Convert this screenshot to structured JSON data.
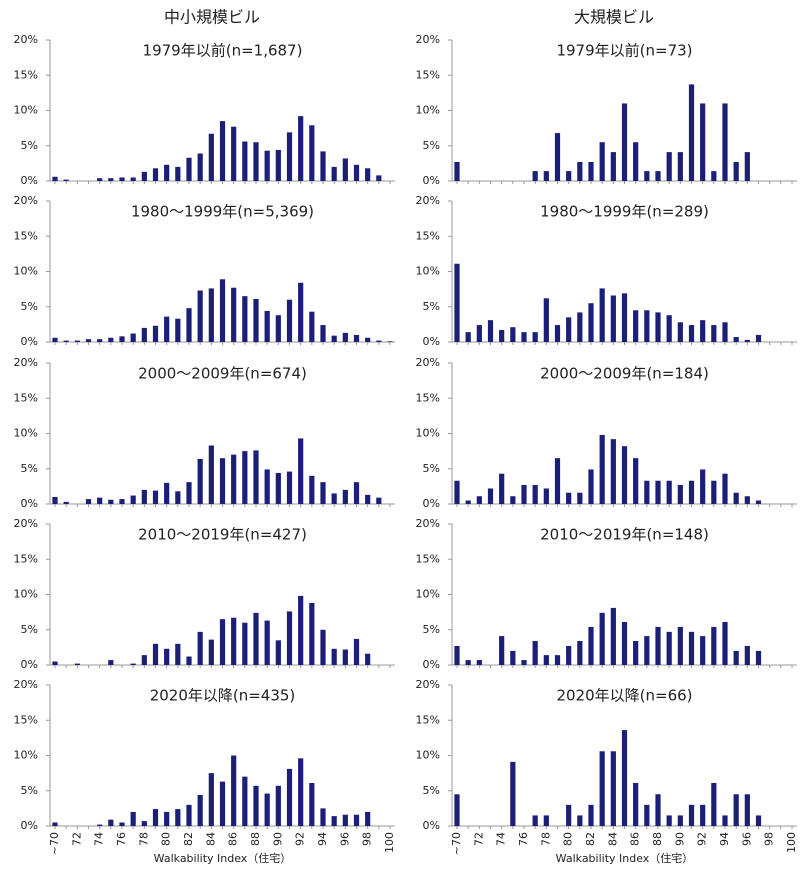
{
  "column_titles": [
    "中小規模ビル",
    "大規模ビル"
  ],
  "chart_data": [
    {
      "type": "bar",
      "title": "1979年以前(n=1,687)",
      "color": "#1c1f78",
      "ylim": [
        0,
        20
      ],
      "yticks": [
        {
          "value": 0,
          "label": "0%"
        },
        {
          "value": 5,
          "label": "5%"
        },
        {
          "value": 10,
          "label": "10%"
        },
        {
          "value": 15,
          "label": "15%"
        },
        {
          "value": 20,
          "label": "20%"
        }
      ],
      "values": [
        0.6,
        0.2,
        0,
        0,
        0.4,
        0.4,
        0.5,
        0.5,
        1.3,
        1.8,
        2.3,
        2.0,
        3.3,
        3.9,
        6.7,
        8.5,
        7.7,
        5.6,
        5.5,
        4.3,
        4.4,
        6.9,
        9.2,
        7.9,
        4.2,
        2.0,
        3.2,
        2.3,
        1.8,
        0.8,
        0
      ]
    },
    {
      "type": "bar",
      "title": "1979年以前(n=73)",
      "color": "#1c1f78",
      "ylim": [
        0,
        20
      ],
      "yticks": [
        {
          "value": 0,
          "label": "0%"
        },
        {
          "value": 5,
          "label": "5%"
        },
        {
          "value": 10,
          "label": "10%"
        },
        {
          "value": 15,
          "label": "15%"
        },
        {
          "value": 20,
          "label": "20%"
        }
      ],
      "values": [
        2.7,
        0,
        0,
        0,
        0,
        0,
        0,
        1.4,
        1.4,
        6.8,
        1.4,
        2.7,
        2.7,
        5.5,
        4.1,
        11.0,
        5.5,
        1.4,
        1.4,
        4.1,
        4.1,
        13.7,
        11.0,
        1.4,
        11.0,
        2.7,
        4.1,
        0,
        0,
        0,
        0
      ]
    },
    {
      "type": "bar",
      "title": "1980～1999年(n=5,369)",
      "color": "#1c1f78",
      "ylim": [
        0,
        20
      ],
      "yticks": [
        {
          "value": 0,
          "label": "0%"
        },
        {
          "value": 5,
          "label": "5%"
        },
        {
          "value": 10,
          "label": "10%"
        },
        {
          "value": 15,
          "label": "15%"
        },
        {
          "value": 20,
          "label": "20%"
        }
      ],
      "values": [
        0.6,
        0.2,
        0.2,
        0.4,
        0.4,
        0.6,
        0.8,
        1.2,
        2.0,
        2.3,
        3.6,
        3.3,
        4.8,
        7.3,
        7.6,
        8.9,
        7.7,
        6.5,
        6.1,
        4.4,
        3.8,
        6.0,
        8.4,
        4.3,
        2.4,
        0.9,
        1.3,
        1.0,
        0.6,
        0.2,
        0.1
      ]
    },
    {
      "type": "bar",
      "title": "1980～1999年(n=289)",
      "color": "#1c1f78",
      "ylim": [
        0,
        20
      ],
      "yticks": [
        {
          "value": 0,
          "label": "0%"
        },
        {
          "value": 5,
          "label": "5%"
        },
        {
          "value": 10,
          "label": "10%"
        },
        {
          "value": 15,
          "label": "15%"
        },
        {
          "value": 20,
          "label": "20%"
        }
      ],
      "values": [
        11.1,
        1.4,
        2.4,
        3.1,
        1.7,
        2.1,
        1.4,
        1.4,
        6.2,
        2.4,
        3.5,
        4.2,
        5.5,
        7.6,
        6.6,
        6.9,
        4.5,
        4.5,
        4.2,
        3.8,
        2.8,
        2.4,
        3.1,
        2.4,
        2.8,
        0.7,
        0.3,
        1.0,
        0,
        0,
        0
      ]
    },
    {
      "type": "bar",
      "title": "2000～2009年(n=674)",
      "color": "#1c1f78",
      "ylim": [
        0,
        20
      ],
      "yticks": [
        {
          "value": 0,
          "label": "0%"
        },
        {
          "value": 5,
          "label": "5%"
        },
        {
          "value": 10,
          "label": "10%"
        },
        {
          "value": 15,
          "label": "15%"
        },
        {
          "value": 20,
          "label": "20%"
        }
      ],
      "values": [
        1.0,
        0.3,
        0,
        0.7,
        0.9,
        0.6,
        0.7,
        1.2,
        2.0,
        1.9,
        3.0,
        1.8,
        3.1,
        6.4,
        8.3,
        6.5,
        7.0,
        7.5,
        7.6,
        4.9,
        4.4,
        4.6,
        9.3,
        4.0,
        3.1,
        1.5,
        2.0,
        3.1,
        1.3,
        0.9,
        0
      ]
    },
    {
      "type": "bar",
      "title": "2000～2009年(n=184)",
      "color": "#1c1f78",
      "ylim": [
        0,
        20
      ],
      "yticks": [
        {
          "value": 0,
          "label": "0%"
        },
        {
          "value": 5,
          "label": "5%"
        },
        {
          "value": 10,
          "label": "10%"
        },
        {
          "value": 15,
          "label": "15%"
        },
        {
          "value": 20,
          "label": "20%"
        }
      ],
      "values": [
        3.3,
        0.5,
        1.1,
        2.2,
        4.3,
        1.1,
        2.7,
        2.7,
        2.2,
        6.5,
        1.6,
        1.6,
        4.9,
        9.8,
        9.2,
        8.2,
        6.5,
        3.3,
        3.3,
        3.3,
        2.7,
        3.3,
        4.9,
        3.3,
        4.3,
        1.6,
        1.1,
        0.5,
        0,
        0,
        0
      ]
    },
    {
      "type": "bar",
      "title": "2010～2019年(n=427)",
      "color": "#1c1f78",
      "ylim": [
        0,
        20
      ],
      "yticks": [
        {
          "value": 0,
          "label": "0%"
        },
        {
          "value": 5,
          "label": "5%"
        },
        {
          "value": 10,
          "label": "10%"
        },
        {
          "value": 15,
          "label": "15%"
        },
        {
          "value": 20,
          "label": "20%"
        }
      ],
      "values": [
        0.5,
        0,
        0.2,
        0,
        0,
        0.7,
        0,
        0.2,
        1.4,
        3.0,
        2.3,
        3.0,
        1.2,
        4.7,
        3.6,
        6.5,
        6.7,
        6.0,
        7.4,
        6.3,
        3.5,
        7.6,
        9.8,
        8.8,
        5.0,
        2.3,
        2.2,
        3.7,
        1.6,
        0,
        0
      ]
    },
    {
      "type": "bar",
      "title": "2010～2019年(n=148)",
      "color": "#1c1f78",
      "ylim": [
        0,
        20
      ],
      "yticks": [
        {
          "value": 0,
          "label": "0%"
        },
        {
          "value": 5,
          "label": "5%"
        },
        {
          "value": 10,
          "label": "10%"
        },
        {
          "value": 15,
          "label": "15%"
        },
        {
          "value": 20,
          "label": "20%"
        }
      ],
      "values": [
        2.7,
        0.7,
        0.7,
        0,
        4.1,
        2.0,
        0.7,
        3.4,
        1.4,
        1.4,
        2.7,
        3.4,
        5.4,
        7.4,
        8.1,
        6.1,
        3.4,
        4.1,
        5.4,
        4.7,
        5.4,
        4.7,
        4.1,
        5.4,
        6.1,
        2.0,
        2.7,
        2.0,
        0,
        0,
        0
      ]
    },
    {
      "type": "bar",
      "title": "2020年以降(n=435)",
      "color": "#1c1f78",
      "ylim": [
        0,
        20
      ],
      "yticks": [
        {
          "value": 0,
          "label": "0%"
        },
        {
          "value": 5,
          "label": "5%"
        },
        {
          "value": 10,
          "label": "10%"
        },
        {
          "value": 15,
          "label": "15%"
        },
        {
          "value": 20,
          "label": "20%"
        }
      ],
      "values": [
        0.5,
        0,
        0,
        0,
        0.2,
        0.9,
        0.5,
        2.0,
        0.7,
        2.4,
        2.0,
        2.4,
        3.0,
        4.4,
        7.5,
        6.3,
        10.0,
        7.0,
        5.7,
        4.6,
        5.7,
        8.1,
        9.6,
        6.1,
        2.5,
        1.4,
        1.6,
        1.6,
        2.0,
        0,
        0
      ],
      "categories": [
        "~70",
        null,
        "72",
        null,
        "74",
        null,
        "76",
        null,
        "78",
        null,
        "80",
        null,
        "82",
        null,
        "84",
        null,
        "86",
        null,
        "88",
        null,
        "90",
        null,
        "92",
        null,
        "94",
        null,
        "96",
        null,
        "98",
        null,
        "100"
      ],
      "x_label": "Walkability Index（住宅）"
    },
    {
      "type": "bar",
      "title": "2020年以降(n=66)",
      "color": "#1c1f78",
      "ylim": [
        0,
        20
      ],
      "yticks": [
        {
          "value": 0,
          "label": "0%"
        },
        {
          "value": 5,
          "label": "5%"
        },
        {
          "value": 10,
          "label": "10%"
        },
        {
          "value": 15,
          "label": "15%"
        },
        {
          "value": 20,
          "label": "20%"
        }
      ],
      "values": [
        4.5,
        0,
        0,
        0,
        0,
        9.1,
        0,
        1.5,
        1.5,
        0,
        3.0,
        1.5,
        3.0,
        10.6,
        10.6,
        13.6,
        6.1,
        3.0,
        4.5,
        1.5,
        1.5,
        3.0,
        3.0,
        6.1,
        1.5,
        4.5,
        4.5,
        1.5,
        0,
        0,
        0
      ],
      "categories": [
        "~70",
        null,
        "72",
        null,
        "74",
        null,
        "76",
        null,
        "78",
        null,
        "80",
        null,
        "82",
        null,
        "84",
        null,
        "86",
        null,
        "88",
        null,
        "90",
        null,
        "92",
        null,
        "94",
        null,
        "96",
        null,
        "98",
        null,
        "100"
      ],
      "x_label": "Walkability Index（住宅）"
    }
  ]
}
